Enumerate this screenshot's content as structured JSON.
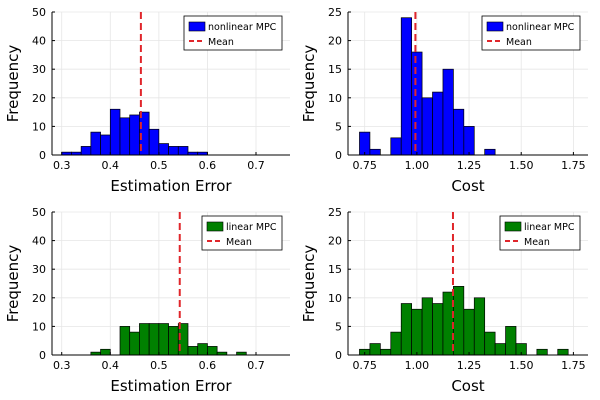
{
  "chart_data": [
    {
      "type": "bar",
      "xlabel": "Estimation Error",
      "ylabel": "Frequency",
      "xlim": [
        0.28,
        0.77
      ],
      "ylim": [
        0,
        50
      ],
      "xticks": [
        "0.3",
        "0.4",
        "0.5",
        "0.6",
        "0.7"
      ],
      "yticks": [
        "0",
        "10",
        "20",
        "30",
        "40",
        "50"
      ],
      "bin_width": 0.02,
      "bin_start": 0.3,
      "values": [
        1,
        1,
        3,
        8,
        7,
        16,
        13,
        14,
        15,
        9,
        4,
        3,
        3,
        1,
        1
      ],
      "mean": 0.463,
      "bar_color": "#0000ff",
      "mean_color": "#e0262b",
      "legend": {
        "position": "top-right",
        "entries": [
          "nonlinear MPC",
          "Mean"
        ]
      }
    },
    {
      "type": "bar",
      "xlabel": "Cost",
      "ylabel": "Frequency",
      "xlim": [
        0.67,
        1.82
      ],
      "ylim": [
        0,
        25
      ],
      "xticks": [
        "0.75",
        "1.00",
        "1.25",
        "1.50",
        "1.75"
      ],
      "yticks": [
        "0",
        "5",
        "10",
        "15",
        "20",
        "25"
      ],
      "bin_width": 0.05,
      "bin_start": 0.725,
      "values": [
        4,
        1,
        0,
        3,
        24,
        18,
        10,
        11,
        15,
        8,
        5,
        0,
        1
      ],
      "mean": 0.993,
      "bar_color": "#0000ff",
      "mean_color": "#e0262b",
      "legend": {
        "position": "top-right",
        "entries": [
          "nonlinear MPC",
          "Mean"
        ]
      }
    },
    {
      "type": "bar",
      "xlabel": "Estimation Error",
      "ylabel": "Frequency",
      "xlim": [
        0.28,
        0.77
      ],
      "ylim": [
        0,
        50
      ],
      "xticks": [
        "0.3",
        "0.4",
        "0.5",
        "0.6",
        "0.7"
      ],
      "yticks": [
        "0",
        "10",
        "20",
        "30",
        "40",
        "50"
      ],
      "bin_width": 0.02,
      "bin_start": 0.36,
      "values": [
        1,
        2,
        0,
        10,
        8,
        11,
        11,
        11,
        10,
        11,
        3,
        4,
        3,
        1,
        0,
        1
      ],
      "mean": 0.543,
      "bar_color": "#008000",
      "mean_color": "#e0262b",
      "legend": {
        "position": "top-right",
        "entries": [
          "linear MPC",
          "Mean"
        ]
      }
    },
    {
      "type": "bar",
      "xlabel": "Cost",
      "ylabel": "Frequency",
      "xlim": [
        0.67,
        1.82
      ],
      "ylim": [
        0,
        25
      ],
      "xticks": [
        "0.75",
        "1.00",
        "1.25",
        "1.50",
        "1.75"
      ],
      "yticks": [
        "0",
        "5",
        "10",
        "15",
        "20",
        "25"
      ],
      "bin_width": 0.05,
      "bin_start": 0.725,
      "values": [
        1,
        2,
        1,
        4,
        9,
        8,
        10,
        9,
        11,
        12,
        8,
        10,
        4,
        2,
        5,
        2,
        0,
        1,
        0,
        1
      ],
      "mean": 1.173,
      "bar_color": "#008000",
      "mean_color": "#e0262b",
      "legend": {
        "position": "top-right",
        "entries": [
          "linear MPC",
          "Mean"
        ]
      }
    }
  ]
}
